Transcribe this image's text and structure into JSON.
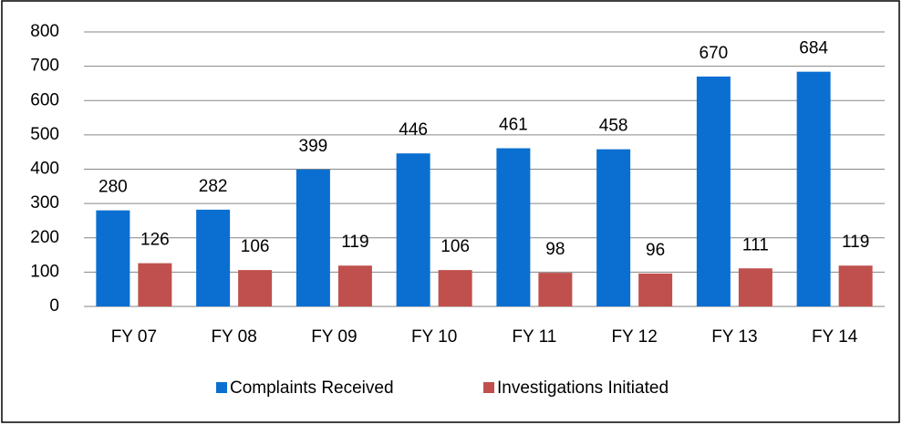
{
  "chart_data": {
    "type": "bar",
    "categories": [
      "FY 07",
      "FY 08",
      "FY 09",
      "FY 10",
      "FY 11",
      "FY 12",
      "FY 13",
      "FY 14"
    ],
    "series": [
      {
        "name": "Complaints Received",
        "color": "#0a6fd1",
        "values": [
          280,
          282,
          399,
          446,
          461,
          458,
          670,
          684
        ]
      },
      {
        "name": "Investigations Initiated",
        "color": "#c0504d",
        "values": [
          126,
          106,
          119,
          106,
          98,
          96,
          111,
          119
        ]
      }
    ],
    "ylim": [
      0,
      800
    ],
    "yticks": [
      0,
      100,
      200,
      300,
      400,
      500,
      600,
      700,
      800
    ],
    "grid": true,
    "legend": "bottom"
  }
}
